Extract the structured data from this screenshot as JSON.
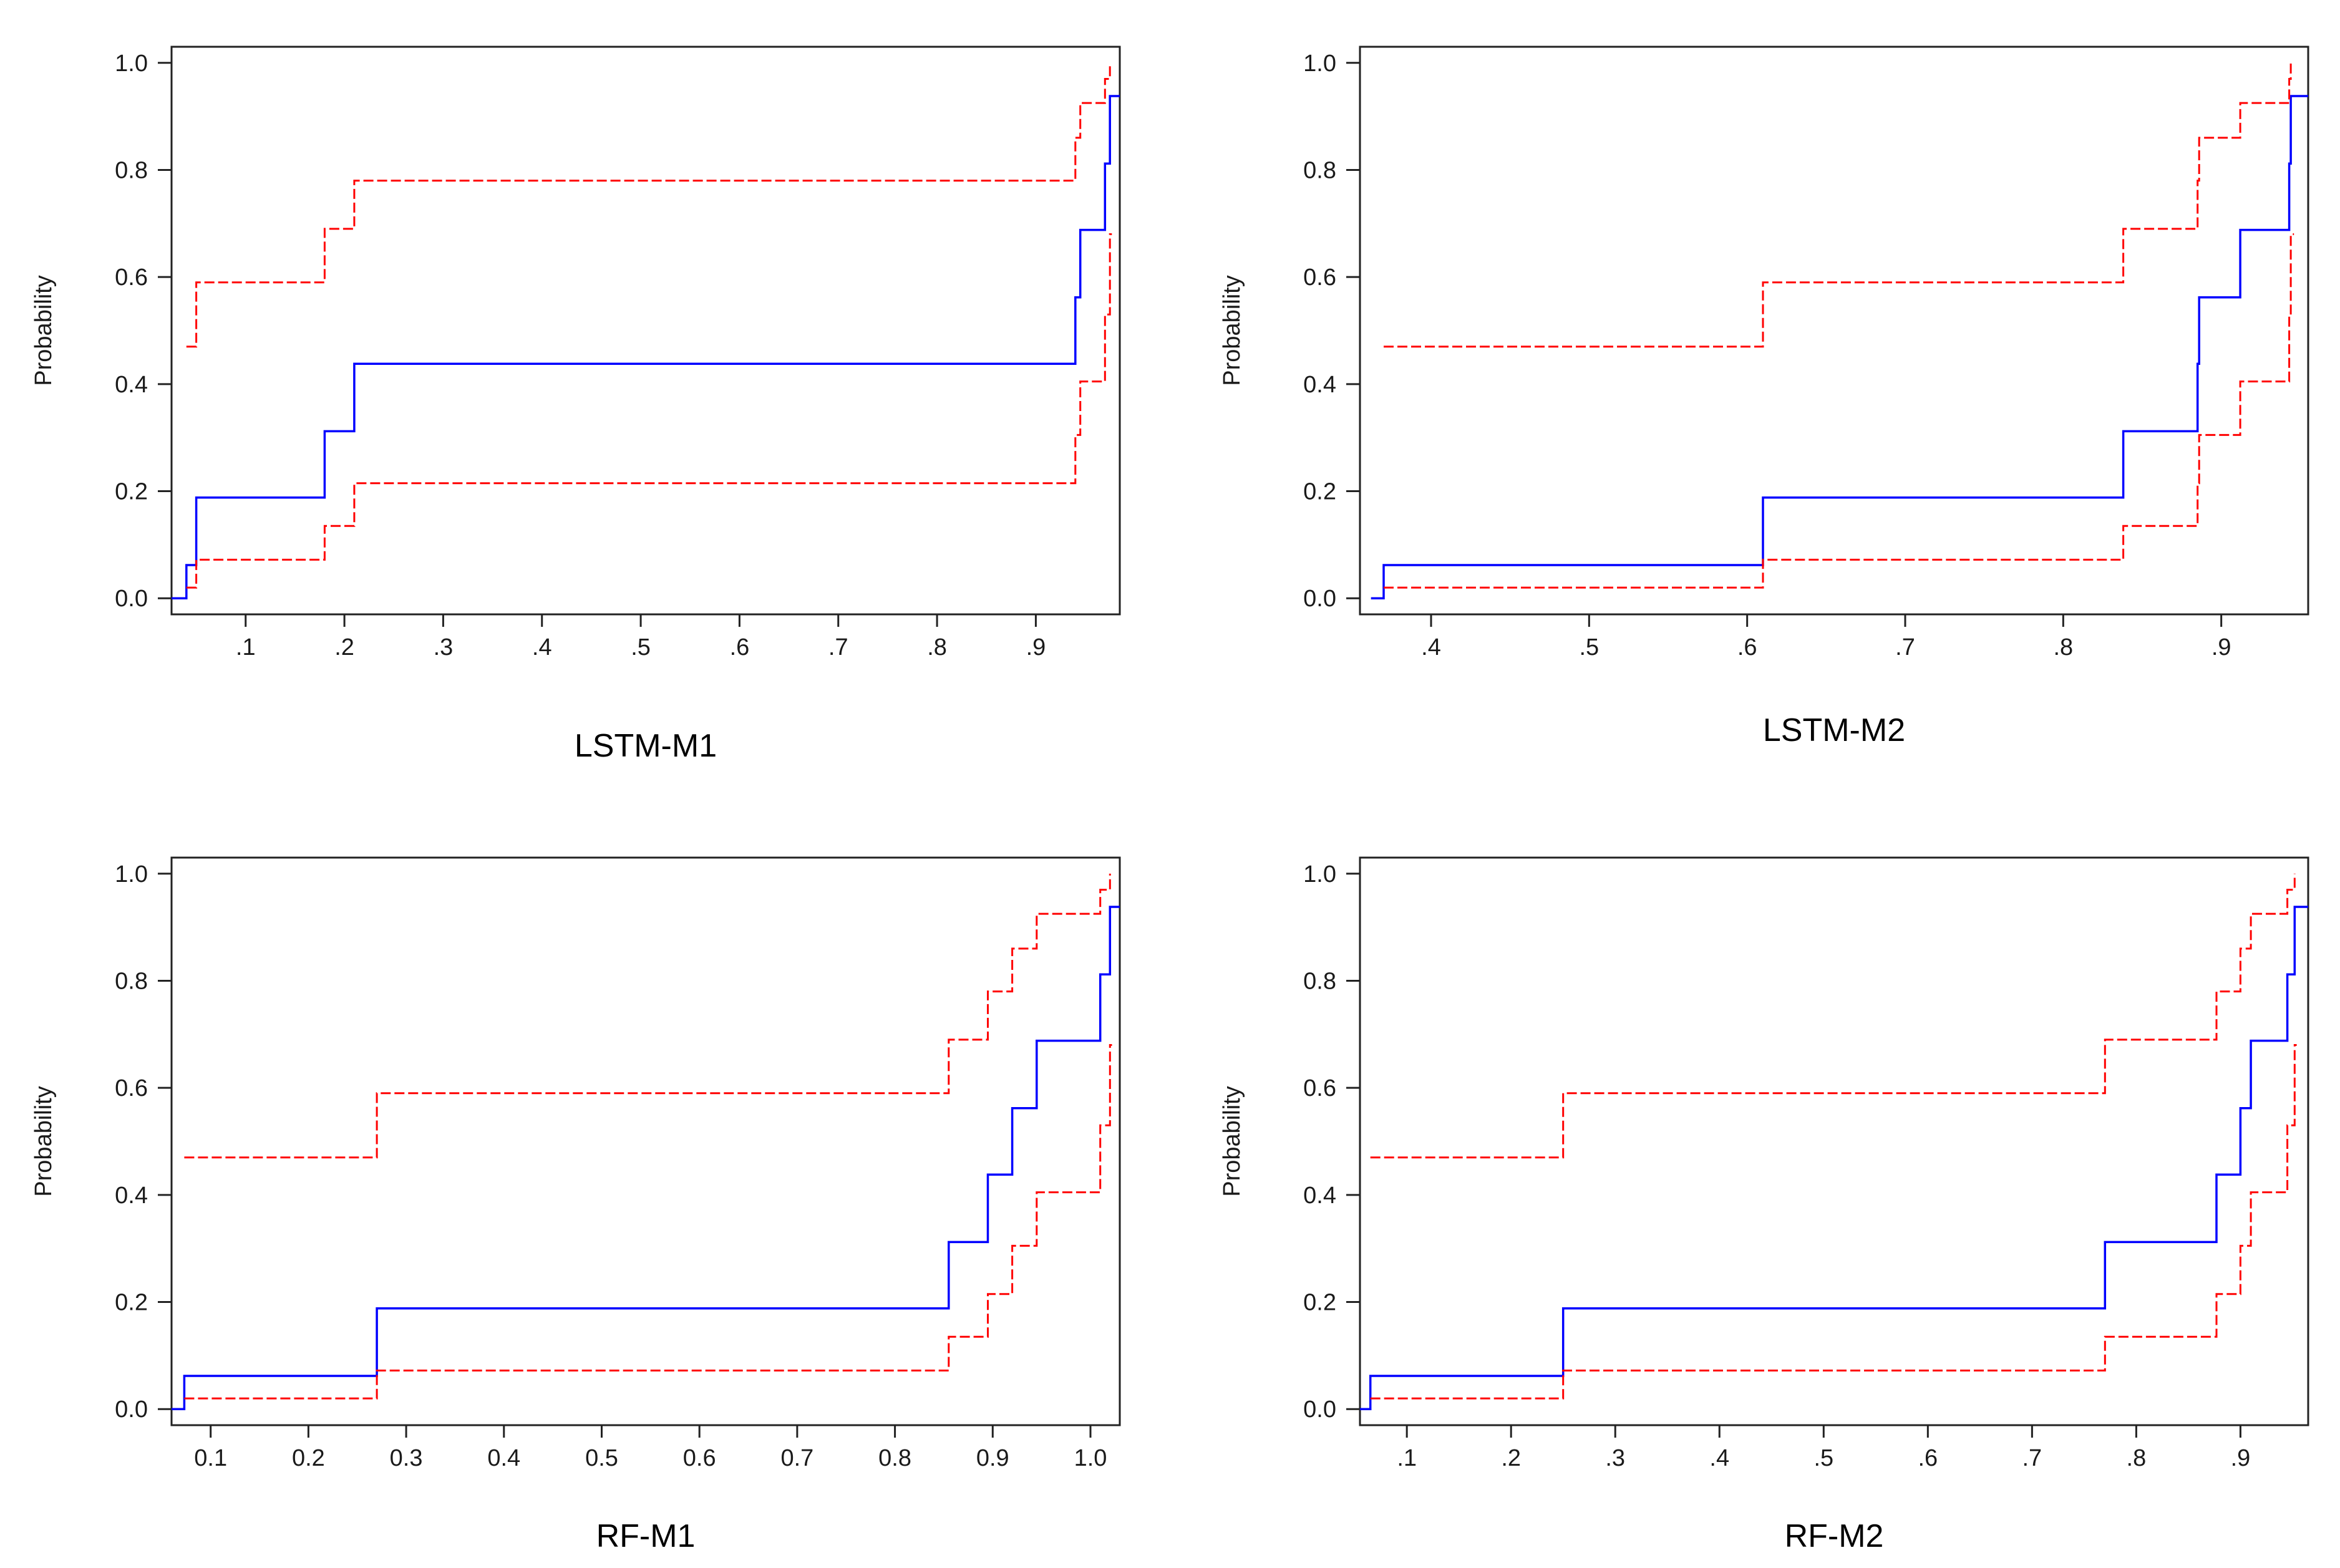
{
  "chart_data": [
    {
      "type": "line",
      "title": "LSTM-M1",
      "ylabel": "Probability",
      "xlim": [
        0.025,
        0.985
      ],
      "ylim": [
        -0.03,
        1.03
      ],
      "xticks": [
        0.1,
        0.2,
        0.3,
        0.4,
        0.5,
        0.6,
        0.7,
        0.8,
        0.9
      ],
      "xtick_labels": [
        ".1",
        ".2",
        ".3",
        ".4",
        ".5",
        ".6",
        ".7",
        ".8",
        ".9"
      ],
      "yticks": [
        0.0,
        0.2,
        0.4,
        0.6,
        0.8,
        1.0
      ],
      "ytick_labels": [
        "0.0",
        "0.2",
        "0.4",
        "0.6",
        "0.8",
        "1.0"
      ],
      "series": [
        {
          "style": "solid",
          "color": "#0000ff",
          "x": [
            0.025,
            0.04,
            0.05,
            0.18,
            0.21,
            0.94,
            0.945,
            0.97,
            0.975,
            0.985
          ],
          "y": [
            0.0,
            0.062,
            0.188,
            0.312,
            0.438,
            0.562,
            0.688,
            0.812,
            0.938,
            0.938
          ]
        },
        {
          "style": "dashed",
          "color": "#ff0000",
          "x": [
            0.04,
            0.05,
            0.18,
            0.21,
            0.94,
            0.945,
            0.97,
            0.975
          ],
          "y": [
            0.47,
            0.59,
            0.69,
            0.78,
            0.86,
            0.925,
            0.97,
            1.0
          ]
        },
        {
          "style": "dashed",
          "color": "#ff0000",
          "x": [
            0.04,
            0.05,
            0.18,
            0.21,
            0.94,
            0.945,
            0.97,
            0.975,
            0.977
          ],
          "y": [
            0.02,
            0.072,
            0.135,
            0.215,
            0.305,
            0.405,
            0.53,
            0.68,
            0.68
          ]
        }
      ]
    },
    {
      "type": "line",
      "title": "LSTM-M2",
      "ylabel": "Probability",
      "xlim": [
        0.355,
        0.955
      ],
      "ylim": [
        -0.03,
        1.03
      ],
      "xticks": [
        0.4,
        0.5,
        0.6,
        0.7,
        0.8,
        0.9
      ],
      "xtick_labels": [
        ".4",
        ".5",
        ".6",
        ".7",
        ".8",
        ".9"
      ],
      "yticks": [
        0.0,
        0.2,
        0.4,
        0.6,
        0.8,
        1.0
      ],
      "ytick_labels": [
        "0.0",
        "0.2",
        "0.4",
        "0.6",
        "0.8",
        "1.0"
      ],
      "series": [
        {
          "style": "solid",
          "color": "#0000ff",
          "x": [
            0.362,
            0.37,
            0.61,
            0.838,
            0.885,
            0.886,
            0.912,
            0.943,
            0.944,
            0.955
          ],
          "y": [
            0.0,
            0.062,
            0.188,
            0.312,
            0.438,
            0.562,
            0.688,
            0.812,
            0.938,
            0.938
          ]
        },
        {
          "style": "dashed",
          "color": "#ff0000",
          "x": [
            0.37,
            0.61,
            0.838,
            0.885,
            0.886,
            0.912,
            0.943,
            0.944
          ],
          "y": [
            0.47,
            0.59,
            0.69,
            0.78,
            0.86,
            0.925,
            0.97,
            1.0
          ]
        },
        {
          "style": "dashed",
          "color": "#ff0000",
          "x": [
            0.37,
            0.61,
            0.838,
            0.885,
            0.886,
            0.912,
            0.943,
            0.944,
            0.946
          ],
          "y": [
            0.02,
            0.072,
            0.135,
            0.215,
            0.305,
            0.405,
            0.53,
            0.68,
            0.68
          ]
        }
      ]
    },
    {
      "type": "line",
      "title": "RF-M1",
      "ylabel": "Probability",
      "xlim": [
        0.06,
        1.03
      ],
      "ylim": [
        -0.03,
        1.03
      ],
      "xticks": [
        0.1,
        0.2,
        0.3,
        0.4,
        0.5,
        0.6,
        0.7,
        0.8,
        0.9,
        1.0
      ],
      "xtick_labels": [
        "0.1",
        "0.2",
        "0.3",
        "0.4",
        "0.5",
        "0.6",
        "0.7",
        "0.8",
        "0.9",
        "1.0"
      ],
      "yticks": [
        0.0,
        0.2,
        0.4,
        0.6,
        0.8,
        1.0
      ],
      "ytick_labels": [
        "0.0",
        "0.2",
        "0.4",
        "0.6",
        "0.8",
        "1.0"
      ],
      "series": [
        {
          "style": "solid",
          "color": "#0000ff",
          "x": [
            0.06,
            0.073,
            0.27,
            0.855,
            0.895,
            0.92,
            0.945,
            1.01,
            1.02,
            1.03
          ],
          "y": [
            0.0,
            0.062,
            0.188,
            0.312,
            0.438,
            0.562,
            0.688,
            0.812,
            0.938,
            0.938
          ]
        },
        {
          "style": "dashed",
          "color": "#ff0000",
          "x": [
            0.073,
            0.27,
            0.855,
            0.895,
            0.92,
            0.945,
            1.01,
            1.02
          ],
          "y": [
            0.47,
            0.59,
            0.69,
            0.78,
            0.86,
            0.925,
            0.97,
            1.0
          ]
        },
        {
          "style": "dashed",
          "color": "#ff0000",
          "x": [
            0.073,
            0.27,
            0.855,
            0.895,
            0.92,
            0.945,
            1.01,
            1.02,
            1.022
          ],
          "y": [
            0.02,
            0.072,
            0.135,
            0.215,
            0.305,
            0.405,
            0.53,
            0.68,
            0.68
          ]
        }
      ]
    },
    {
      "type": "line",
      "title": "RF-M2",
      "ylabel": "Probability",
      "xlim": [
        0.055,
        0.965
      ],
      "ylim": [
        -0.03,
        1.03
      ],
      "xticks": [
        0.1,
        0.2,
        0.3,
        0.4,
        0.5,
        0.6,
        0.7,
        0.8,
        0.9
      ],
      "xtick_labels": [
        ".1",
        ".2",
        ".3",
        ".4",
        ".5",
        ".6",
        ".7",
        ".8",
        ".9"
      ],
      "yticks": [
        0.0,
        0.2,
        0.4,
        0.6,
        0.8,
        1.0
      ],
      "ytick_labels": [
        "0.0",
        "0.2",
        "0.4",
        "0.6",
        "0.8",
        "1.0"
      ],
      "series": [
        {
          "style": "solid",
          "color": "#0000ff",
          "x": [
            0.055,
            0.065,
            0.25,
            0.77,
            0.877,
            0.9,
            0.91,
            0.945,
            0.952,
            0.965
          ],
          "y": [
            0.0,
            0.062,
            0.188,
            0.312,
            0.438,
            0.562,
            0.688,
            0.812,
            0.938,
            0.938
          ]
        },
        {
          "style": "dashed",
          "color": "#ff0000",
          "x": [
            0.065,
            0.25,
            0.77,
            0.877,
            0.9,
            0.91,
            0.945,
            0.952
          ],
          "y": [
            0.47,
            0.59,
            0.69,
            0.78,
            0.86,
            0.925,
            0.97,
            1.0
          ]
        },
        {
          "style": "dashed",
          "color": "#ff0000",
          "x": [
            0.065,
            0.25,
            0.77,
            0.877,
            0.9,
            0.91,
            0.945,
            0.952,
            0.954
          ],
          "y": [
            0.02,
            0.072,
            0.135,
            0.215,
            0.305,
            0.405,
            0.53,
            0.68,
            0.68
          ]
        }
      ]
    }
  ]
}
